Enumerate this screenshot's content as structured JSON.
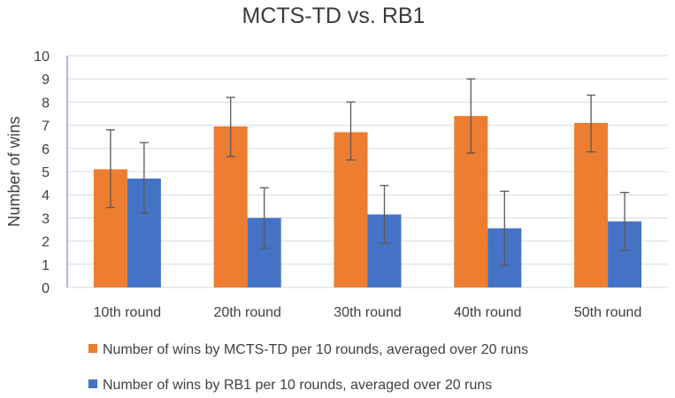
{
  "chart_data": {
    "type": "bar",
    "title": "MCTS-TD vs. RB1",
    "xlabel": "",
    "ylabel": "Number of wins",
    "ylim": [
      0,
      10
    ],
    "yticks": [
      0,
      1,
      2,
      3,
      4,
      5,
      6,
      7,
      8,
      9,
      10
    ],
    "grid": true,
    "legend_position": "bottom",
    "categories": [
      "10th round",
      "20th round",
      "30th round",
      "40th round",
      "50th round"
    ],
    "series": [
      {
        "name": "Number of wins by MCTS-TD per 10 rounds, averaged over 20 runs",
        "color": "#ED7D31",
        "values": [
          5.1,
          6.95,
          6.7,
          7.4,
          7.1
        ],
        "error_high": [
          6.8,
          8.2,
          8.0,
          9.0,
          8.3
        ],
        "error_low": [
          3.45,
          5.65,
          5.5,
          5.8,
          5.85
        ]
      },
      {
        "name": "Number of wins by RB1 per 10 rounds, averaged over 20 runs",
        "color": "#4472C4",
        "values": [
          4.7,
          3.0,
          3.15,
          2.55,
          2.85
        ],
        "error_high": [
          6.25,
          4.3,
          4.4,
          4.15,
          4.1
        ],
        "error_low": [
          3.2,
          1.7,
          1.9,
          0.95,
          1.6
        ]
      }
    ]
  }
}
